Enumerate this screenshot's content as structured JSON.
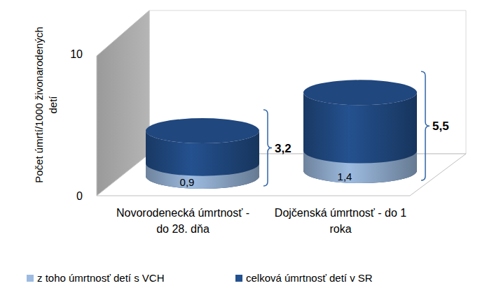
{
  "chart_data": {
    "type": "bar",
    "categories": [
      "Novorodenecká úmrtnosť - do 28. dňa",
      "Dojčenská úmrtnosť - do 1 roka"
    ],
    "series": [
      {
        "name": "z toho úmrtnosť detí s VCH",
        "color": "#9dbbe0",
        "values": [
          0.9,
          1.4
        ],
        "value_labels": [
          "0,9",
          "1,4"
        ]
      },
      {
        "name": "celková úmrtnosť detí v SR",
        "color": "#24518f",
        "values": [
          3.2,
          5.5
        ],
        "value_labels": [
          "3,2",
          "5,5"
        ]
      }
    ],
    "y_label": "Počet úmrtí/1000 živonarodených detí",
    "ylim": [
      0,
      10
    ],
    "yticks": [
      0,
      10
    ],
    "grid": false,
    "legend": "bottom",
    "stacked": false,
    "data_labels": true
  }
}
